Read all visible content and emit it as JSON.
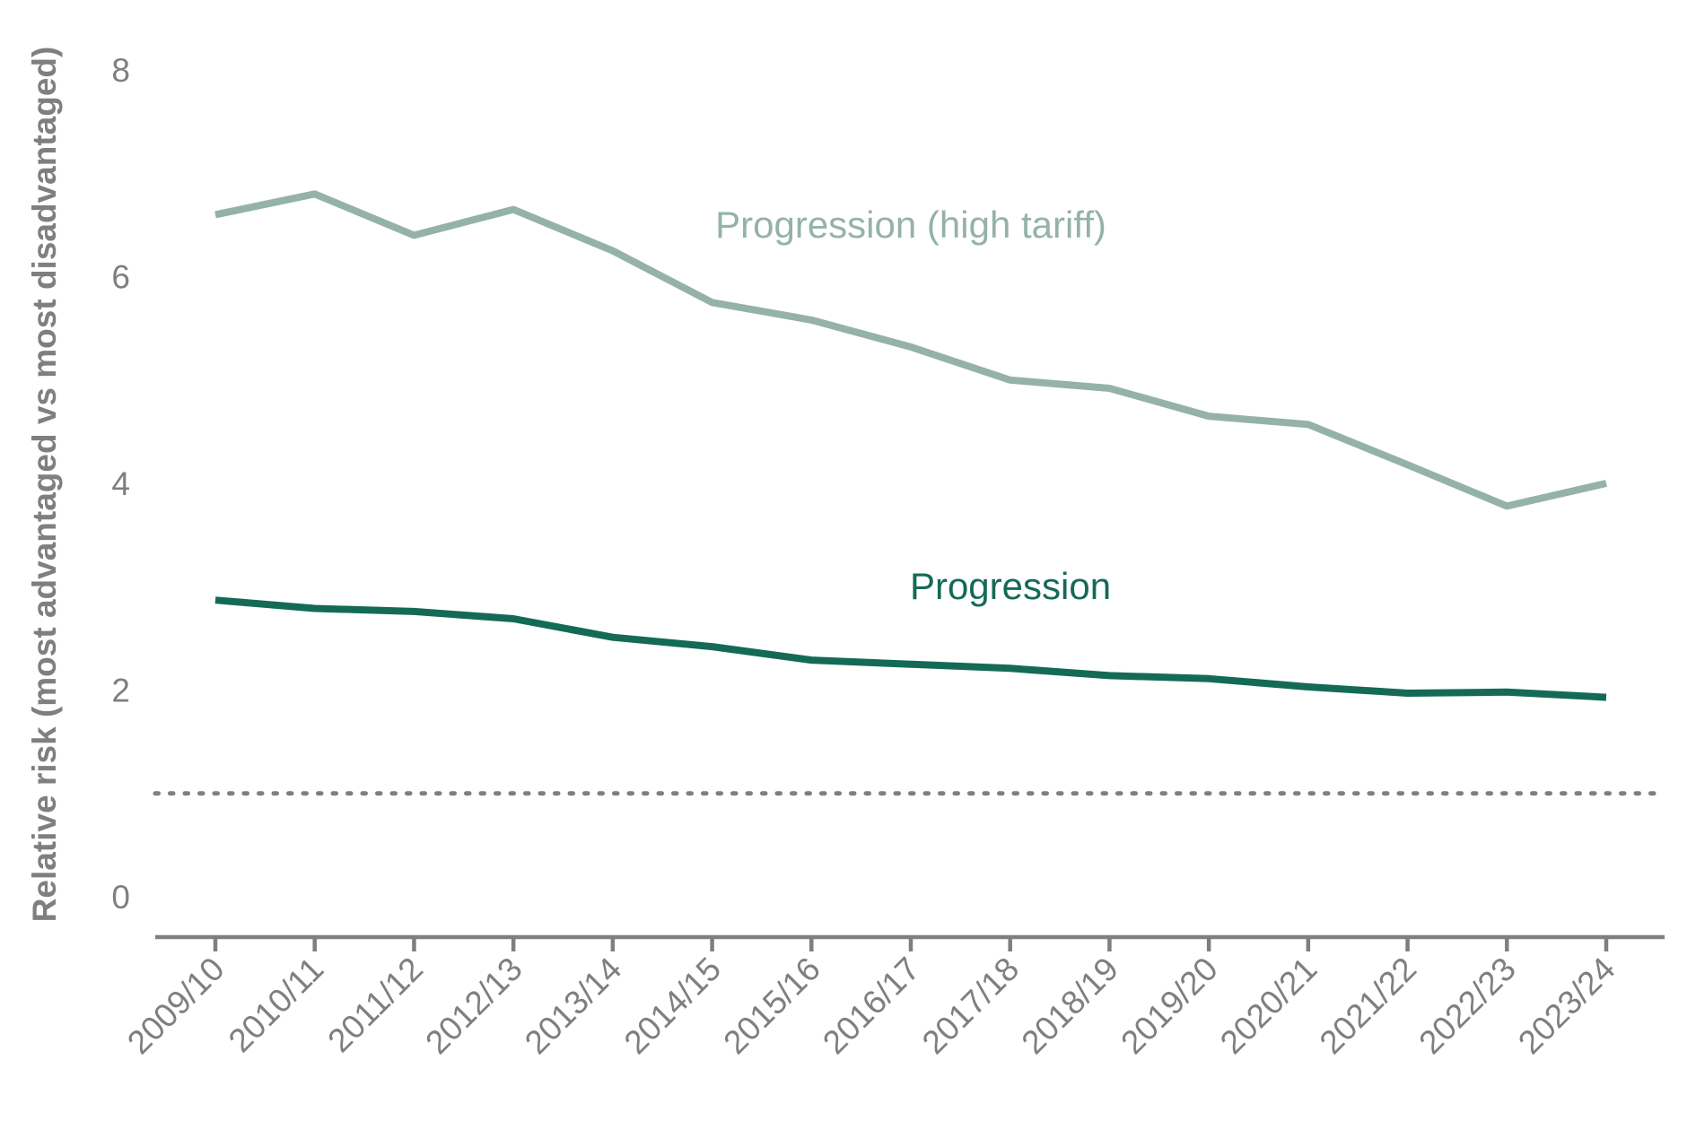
{
  "chart_data": {
    "type": "line",
    "title": "",
    "xlabel": "",
    "ylabel": "Relative risk (most advantaged vs most disadvantaged)",
    "ylim": [
      0,
      8
    ],
    "yticks": [
      0,
      2,
      4,
      6,
      8
    ],
    "reference_line": {
      "value": 1,
      "style": "dotted"
    },
    "grid": false,
    "categories": [
      "2009/10",
      "2010/11",
      "2011/12",
      "2012/13",
      "2013/14",
      "2014/15",
      "2015/16",
      "2016/17",
      "2017/18",
      "2018/19",
      "2019/20",
      "2020/21",
      "2021/22",
      "2022/23",
      "2023/24"
    ],
    "series": [
      {
        "name": "Progression (high tariff)",
        "color": "#95b2a7",
        "values": [
          6.6,
          6.8,
          6.4,
          6.65,
          6.25,
          5.75,
          5.58,
          5.32,
          5.0,
          4.92,
          4.65,
          4.57,
          4.18,
          3.78,
          4.0
        ]
      },
      {
        "name": "Progression",
        "color": "#146a57",
        "values": [
          2.87,
          2.79,
          2.76,
          2.69,
          2.51,
          2.42,
          2.29,
          2.25,
          2.21,
          2.14,
          2.11,
          2.03,
          1.97,
          1.98,
          1.93
        ]
      }
    ]
  }
}
